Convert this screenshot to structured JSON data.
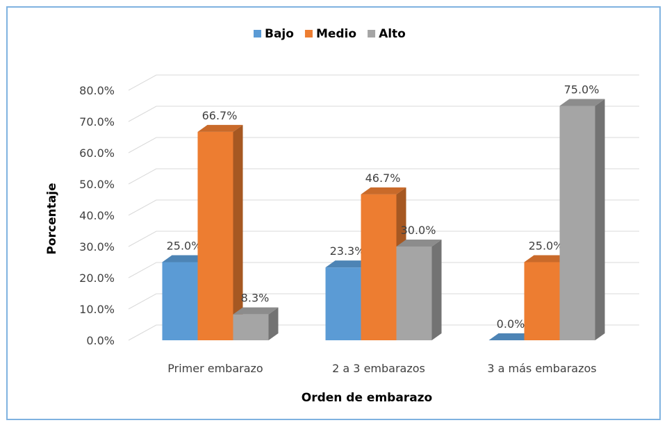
{
  "chart_data": {
    "type": "bar3d",
    "x_label": "Orden de embarazo",
    "y_label": "Porcentaje",
    "categories": [
      "Primer embarazo",
      "2 a 3 embarazos",
      "3 a más embarazos"
    ],
    "series": [
      {
        "name": "Bajo",
        "color": "#5b9bd5",
        "values": [
          25.0,
          23.3,
          0.0
        ],
        "value_labels": [
          "25.0%",
          "23.3%",
          "0.0%"
        ]
      },
      {
        "name": "Medio",
        "color": "#ed7d31",
        "values": [
          66.7,
          46.7,
          25.0
        ],
        "value_labels": [
          "66.7%",
          "46.7%",
          "25.0%"
        ]
      },
      {
        "name": "Alto",
        "color": "#a5a5a5",
        "values": [
          8.3,
          30.0,
          75.0
        ],
        "value_labels": [
          "8.3%",
          "30.0%",
          "75.0%"
        ]
      }
    ],
    "ylim": [
      0,
      80
    ],
    "yticks": [
      {
        "value": 0,
        "label": "0.0%"
      },
      {
        "value": 10,
        "label": "10.0%"
      },
      {
        "value": 20,
        "label": "20.0%"
      },
      {
        "value": 30,
        "label": "30.0%"
      },
      {
        "value": 40,
        "label": "40.0%"
      },
      {
        "value": 50,
        "label": "50.0%"
      },
      {
        "value": 60,
        "label": "60.0%"
      },
      {
        "value": 70,
        "label": "70.0%"
      },
      {
        "value": 80,
        "label": "80.0%"
      }
    ],
    "grid": true,
    "legend": "top"
  }
}
